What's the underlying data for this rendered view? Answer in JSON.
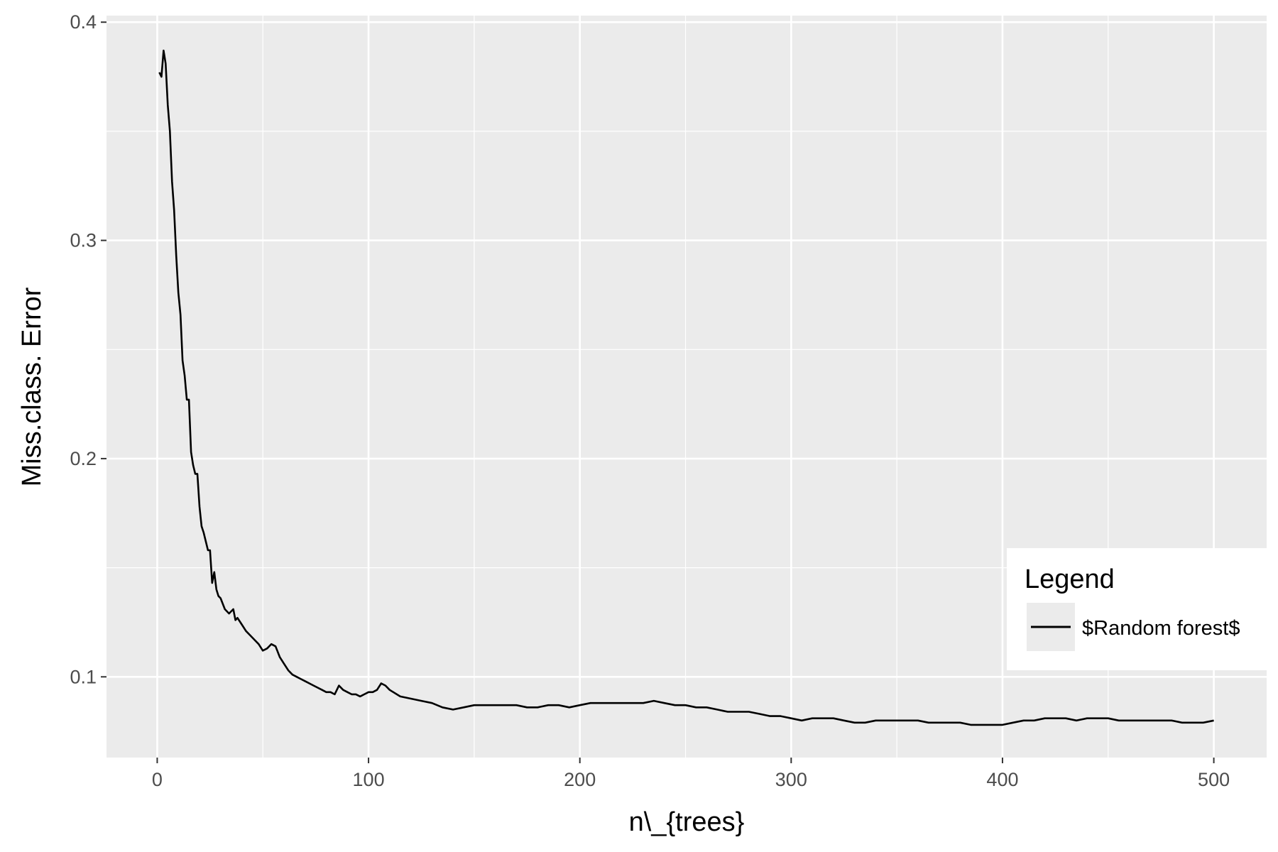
{
  "chart_data": {
    "type": "line",
    "xlabel": "n\\_{trees}",
    "ylabel": "Miss.class. Error",
    "xlim": [
      -24,
      525
    ],
    "ylim": [
      0.063,
      0.403
    ],
    "x_ticks": [
      0,
      100,
      200,
      300,
      400,
      500
    ],
    "y_ticks": [
      0.1,
      0.2,
      0.3,
      0.4
    ],
    "x_tick_labels": [
      "0",
      "100",
      "200",
      "300",
      "400",
      "500"
    ],
    "y_tick_labels": [
      "0.1",
      "0.2",
      "0.3",
      "0.4"
    ],
    "grid": true,
    "legend": {
      "title": "Legend",
      "placement": "right-inside",
      "entries": [
        "$Random forest$"
      ]
    },
    "series": [
      {
        "name": "$Random forest$",
        "color": "#000000",
        "points": [
          [
            1,
            0.377
          ],
          [
            2,
            0.375
          ],
          [
            3,
            0.387
          ],
          [
            4,
            0.381
          ],
          [
            5,
            0.362
          ],
          [
            6,
            0.35
          ],
          [
            7,
            0.327
          ],
          [
            8,
            0.314
          ],
          [
            9,
            0.293
          ],
          [
            10,
            0.276
          ],
          [
            11,
            0.266
          ],
          [
            12,
            0.245
          ],
          [
            13,
            0.238
          ],
          [
            14,
            0.227
          ],
          [
            15,
            0.227
          ],
          [
            16,
            0.203
          ],
          [
            17,
            0.197
          ],
          [
            18,
            0.193
          ],
          [
            19,
            0.193
          ],
          [
            20,
            0.178
          ],
          [
            21,
            0.169
          ],
          [
            22,
            0.166
          ],
          [
            23,
            0.162
          ],
          [
            24,
            0.158
          ],
          [
            25,
            0.158
          ],
          [
            26,
            0.143
          ],
          [
            27,
            0.148
          ],
          [
            28,
            0.14
          ],
          [
            29,
            0.137
          ],
          [
            30,
            0.136
          ],
          [
            32,
            0.131
          ],
          [
            34,
            0.129
          ],
          [
            36,
            0.131
          ],
          [
            37,
            0.126
          ],
          [
            38,
            0.127
          ],
          [
            40,
            0.124
          ],
          [
            42,
            0.121
          ],
          [
            44,
            0.119
          ],
          [
            46,
            0.117
          ],
          [
            48,
            0.115
          ],
          [
            50,
            0.112
          ],
          [
            52,
            0.113
          ],
          [
            54,
            0.115
          ],
          [
            56,
            0.114
          ],
          [
            58,
            0.109
          ],
          [
            60,
            0.106
          ],
          [
            62,
            0.103
          ],
          [
            64,
            0.101
          ],
          [
            66,
            0.1
          ],
          [
            68,
            0.099
          ],
          [
            70,
            0.098
          ],
          [
            72,
            0.097
          ],
          [
            74,
            0.096
          ],
          [
            76,
            0.095
          ],
          [
            78,
            0.094
          ],
          [
            80,
            0.093
          ],
          [
            82,
            0.093
          ],
          [
            84,
            0.092
          ],
          [
            86,
            0.096
          ],
          [
            88,
            0.094
          ],
          [
            90,
            0.093
          ],
          [
            92,
            0.092
          ],
          [
            94,
            0.092
          ],
          [
            96,
            0.091
          ],
          [
            98,
            0.092
          ],
          [
            100,
            0.093
          ],
          [
            102,
            0.093
          ],
          [
            104,
            0.094
          ],
          [
            106,
            0.097
          ],
          [
            108,
            0.096
          ],
          [
            110,
            0.094
          ],
          [
            115,
            0.091
          ],
          [
            120,
            0.09
          ],
          [
            125,
            0.089
          ],
          [
            130,
            0.088
          ],
          [
            135,
            0.086
          ],
          [
            140,
            0.085
          ],
          [
            145,
            0.086
          ],
          [
            150,
            0.087
          ],
          [
            155,
            0.087
          ],
          [
            160,
            0.087
          ],
          [
            165,
            0.087
          ],
          [
            170,
            0.087
          ],
          [
            175,
            0.086
          ],
          [
            180,
            0.086
          ],
          [
            185,
            0.087
          ],
          [
            190,
            0.087
          ],
          [
            195,
            0.086
          ],
          [
            200,
            0.087
          ],
          [
            205,
            0.088
          ],
          [
            210,
            0.088
          ],
          [
            215,
            0.088
          ],
          [
            220,
            0.088
          ],
          [
            225,
            0.088
          ],
          [
            230,
            0.088
          ],
          [
            235,
            0.089
          ],
          [
            240,
            0.088
          ],
          [
            245,
            0.087
          ],
          [
            250,
            0.087
          ],
          [
            255,
            0.086
          ],
          [
            260,
            0.086
          ],
          [
            265,
            0.085
          ],
          [
            270,
            0.084
          ],
          [
            275,
            0.084
          ],
          [
            280,
            0.084
          ],
          [
            285,
            0.083
          ],
          [
            290,
            0.082
          ],
          [
            295,
            0.082
          ],
          [
            300,
            0.081
          ],
          [
            305,
            0.08
          ],
          [
            310,
            0.081
          ],
          [
            315,
            0.081
          ],
          [
            320,
            0.081
          ],
          [
            325,
            0.08
          ],
          [
            330,
            0.079
          ],
          [
            335,
            0.079
          ],
          [
            340,
            0.08
          ],
          [
            345,
            0.08
          ],
          [
            350,
            0.08
          ],
          [
            355,
            0.08
          ],
          [
            360,
            0.08
          ],
          [
            365,
            0.079
          ],
          [
            370,
            0.079
          ],
          [
            375,
            0.079
          ],
          [
            380,
            0.079
          ],
          [
            385,
            0.078
          ],
          [
            390,
            0.078
          ],
          [
            395,
            0.078
          ],
          [
            400,
            0.078
          ],
          [
            405,
            0.079
          ],
          [
            410,
            0.08
          ],
          [
            415,
            0.08
          ],
          [
            420,
            0.081
          ],
          [
            425,
            0.081
          ],
          [
            430,
            0.081
          ],
          [
            435,
            0.08
          ],
          [
            440,
            0.081
          ],
          [
            445,
            0.081
          ],
          [
            450,
            0.081
          ],
          [
            455,
            0.08
          ],
          [
            460,
            0.08
          ],
          [
            465,
            0.08
          ],
          [
            470,
            0.08
          ],
          [
            475,
            0.08
          ],
          [
            480,
            0.08
          ],
          [
            485,
            0.079
          ],
          [
            490,
            0.079
          ],
          [
            495,
            0.079
          ],
          [
            500,
            0.08
          ]
        ]
      }
    ]
  }
}
